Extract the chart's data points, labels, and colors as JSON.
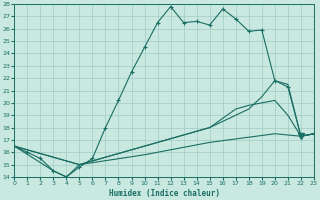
{
  "xlabel": "Humidex (Indice chaleur)",
  "xlim": [
    0,
    23
  ],
  "ylim": [
    14,
    28
  ],
  "yticks": [
    14,
    15,
    16,
    17,
    18,
    19,
    20,
    21,
    22,
    23,
    24,
    25,
    26,
    27,
    28
  ],
  "xticks": [
    0,
    1,
    2,
    3,
    4,
    5,
    6,
    7,
    8,
    9,
    10,
    11,
    12,
    13,
    14,
    15,
    16,
    17,
    18,
    19,
    20,
    21,
    22,
    23
  ],
  "bg_color": "#c8e8e0",
  "line_color": "#1a6e62",
  "grid_color": "#a0ccc4",
  "line1_x": [
    0,
    1,
    2,
    3,
    4,
    5,
    6,
    7,
    8,
    9,
    10,
    11,
    12,
    13,
    14,
    15,
    16,
    17,
    18,
    19,
    20,
    21,
    22,
    23
  ],
  "line1_y": [
    16.5,
    16.0,
    15.5,
    14.5,
    14.0,
    14.8,
    15.5,
    18.0,
    20.2,
    22.5,
    24.5,
    26.5,
    27.8,
    26.5,
    26.6,
    26.3,
    27.6,
    26.8,
    25.8,
    25.9,
    21.8,
    21.3,
    17.3,
    17.5
  ],
  "line2_x": [
    0,
    5,
    10,
    15,
    18,
    19,
    20,
    21,
    22,
    23
  ],
  "line2_y": [
    16.5,
    15.0,
    16.5,
    18.0,
    19.5,
    20.5,
    21.8,
    21.5,
    17.3,
    17.5
  ],
  "line3_x": [
    0,
    5,
    10,
    15,
    17,
    18,
    19,
    20,
    21,
    22,
    23
  ],
  "line3_y": [
    16.5,
    15.0,
    16.5,
    18.0,
    19.5,
    19.8,
    20.0,
    20.2,
    19.0,
    17.3,
    17.5
  ],
  "line4_x": [
    0,
    3,
    4,
    5,
    10,
    15,
    20,
    22,
    23
  ],
  "line4_y": [
    16.5,
    14.5,
    14.0,
    15.0,
    15.8,
    16.8,
    17.5,
    17.3,
    17.5
  ],
  "tri_x": [
    22
  ],
  "tri_y": [
    17.3
  ],
  "lw": 0.8
}
